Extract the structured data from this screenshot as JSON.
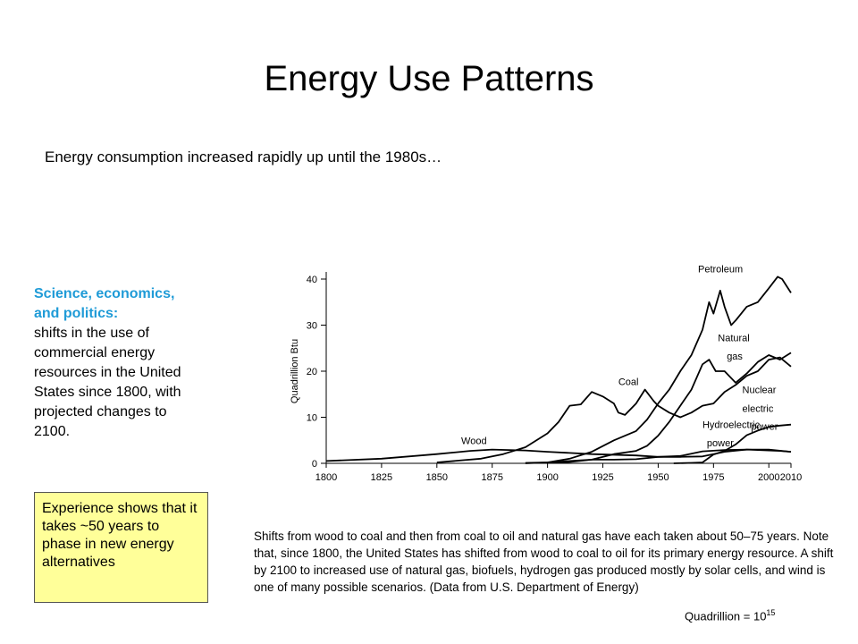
{
  "slide": {
    "title": "Energy Use Patterns",
    "subtitle": "Energy consumption increased rapidly up until the 1980s…",
    "side_heading": "Science, economics, and politics:",
    "side_text": "shifts in the use of commercial energy resources in the United States since 1800, with projected changes to 2100.",
    "note": "Experience shows that it takes ~50 years to phase in new energy alternatives",
    "caption": "Shifts from wood to coal and then from coal to oil and natural gas have each taken about 50–75 years. Note that, since 1800, the United States has shifted from wood to coal to oil for its primary energy resource. A shift by 2100 to increased use of natural gas, biofuels, hydrogen gas produced mostly by solar cells, and wind is one of many possible scenarios. (Data from U.S. Department of Energy)",
    "quadrillion_label": "Quadrillion = 10",
    "quadrillion_exp": "15"
  },
  "chart_data": {
    "type": "line",
    "title": "",
    "xlabel": "",
    "ylabel": "Quadrillion Btu",
    "xlim": [
      1800,
      2010
    ],
    "ylim": [
      0,
      40
    ],
    "xticks": [
      1800,
      1825,
      1850,
      1875,
      1900,
      1925,
      1950,
      1975,
      2000,
      2010
    ],
    "yticks": [
      0,
      10,
      20,
      30,
      40
    ],
    "grid": false,
    "legend": "labels-on-lines",
    "series": [
      {
        "name": "Wood",
        "points": [
          [
            1800,
            0.5
          ],
          [
            1825,
            1
          ],
          [
            1850,
            2
          ],
          [
            1865,
            2.7
          ],
          [
            1875,
            3
          ],
          [
            1890,
            2.8
          ],
          [
            1900,
            2.5
          ],
          [
            1920,
            2
          ],
          [
            1940,
            1.7
          ],
          [
            1950,
            1.4
          ],
          [
            1960,
            1.4
          ],
          [
            1970,
            1.5
          ],
          [
            1980,
            2.5
          ],
          [
            1990,
            3
          ],
          [
            2000,
            3
          ],
          [
            2010,
            2.5
          ]
        ]
      },
      {
        "name": "Coal",
        "points": [
          [
            1850,
            0.2
          ],
          [
            1860,
            0.6
          ],
          [
            1870,
            1
          ],
          [
            1880,
            2
          ],
          [
            1890,
            3.5
          ],
          [
            1900,
            6.5
          ],
          [
            1905,
            9
          ],
          [
            1910,
            12.5
          ],
          [
            1915,
            12.8
          ],
          [
            1920,
            15.5
          ],
          [
            1925,
            14.5
          ],
          [
            1930,
            13
          ],
          [
            1932,
            11
          ],
          [
            1935,
            10.5
          ],
          [
            1940,
            13
          ],
          [
            1944,
            16
          ],
          [
            1948,
            13.5
          ],
          [
            1950,
            12.5
          ],
          [
            1955,
            11
          ],
          [
            1960,
            10
          ],
          [
            1965,
            11
          ],
          [
            1970,
            12.5
          ],
          [
            1975,
            13
          ],
          [
            1980,
            15.5
          ],
          [
            1985,
            17
          ],
          [
            1990,
            19
          ],
          [
            1995,
            20
          ],
          [
            2000,
            22.5
          ],
          [
            2005,
            23
          ],
          [
            2010,
            21
          ]
        ]
      },
      {
        "name": "Petroleum",
        "points": [
          [
            1890,
            0.1
          ],
          [
            1900,
            0.2
          ],
          [
            1910,
            1
          ],
          [
            1920,
            2.5
          ],
          [
            1930,
            5
          ],
          [
            1940,
            7
          ],
          [
            1945,
            9.5
          ],
          [
            1950,
            13
          ],
          [
            1955,
            16
          ],
          [
            1960,
            20
          ],
          [
            1965,
            23.5
          ],
          [
            1970,
            29
          ],
          [
            1973,
            35
          ],
          [
            1975,
            32.5
          ],
          [
            1978,
            37.5
          ],
          [
            1980,
            34
          ],
          [
            1983,
            30
          ],
          [
            1985,
            31
          ],
          [
            1990,
            34
          ],
          [
            1995,
            35
          ],
          [
            2000,
            38
          ],
          [
            2004,
            40.5
          ],
          [
            2006,
            40
          ],
          [
            2010,
            37
          ]
        ]
      },
      {
        "name": "Natural gas",
        "points": [
          [
            1900,
            0.1
          ],
          [
            1910,
            0.3
          ],
          [
            1920,
            0.8
          ],
          [
            1930,
            2
          ],
          [
            1940,
            2.7
          ],
          [
            1945,
            3.8
          ],
          [
            1950,
            6
          ],
          [
            1955,
            9
          ],
          [
            1960,
            12.5
          ],
          [
            1965,
            16
          ],
          [
            1970,
            21.5
          ],
          [
            1973,
            22.5
          ],
          [
            1976,
            20
          ],
          [
            1980,
            20
          ],
          [
            1985,
            17.5
          ],
          [
            1990,
            19.5
          ],
          [
            1995,
            22
          ],
          [
            2000,
            23.5
          ],
          [
            2005,
            22.5
          ],
          [
            2010,
            24
          ]
        ]
      },
      {
        "name": "Nuclear electric power",
        "points": [
          [
            1957,
            0
          ],
          [
            1965,
            0.1
          ],
          [
            1970,
            0.2
          ],
          [
            1975,
            1.9
          ],
          [
            1980,
            2.7
          ],
          [
            1985,
            4.1
          ],
          [
            1990,
            6.1
          ],
          [
            1995,
            7.1
          ],
          [
            2000,
            7.9
          ],
          [
            2005,
            8.2
          ],
          [
            2010,
            8.4
          ]
        ]
      },
      {
        "name": "Hydroelectric power",
        "points": [
          [
            1890,
            0
          ],
          [
            1900,
            0.2
          ],
          [
            1910,
            0.5
          ],
          [
            1920,
            0.8
          ],
          [
            1930,
            0.8
          ],
          [
            1940,
            0.9
          ],
          [
            1950,
            1.4
          ],
          [
            1960,
            1.6
          ],
          [
            1970,
            2.6
          ],
          [
            1980,
            2.9
          ],
          [
            1990,
            3.0
          ],
          [
            2000,
            2.8
          ],
          [
            2005,
            2.7
          ],
          [
            2010,
            2.5
          ]
        ]
      }
    ],
    "annotations": [
      {
        "text": "Petroleum",
        "series": "Petroleum"
      },
      {
        "text": "Natural",
        "series": "Natural gas"
      },
      {
        "text": "gas",
        "series": "Natural gas"
      },
      {
        "text": "Coal",
        "series": "Coal"
      },
      {
        "text": "Wood",
        "series": "Wood"
      },
      {
        "text": "Nuclear",
        "series": "Nuclear electric power"
      },
      {
        "text": "electric",
        "series": "Nuclear electric power"
      },
      {
        "text": "power",
        "series": "Nuclear electric power"
      },
      {
        "text": "Hydroelectric",
        "series": "Hydroelectric power"
      },
      {
        "text": "power",
        "series": "Hydroelectric power"
      }
    ]
  }
}
